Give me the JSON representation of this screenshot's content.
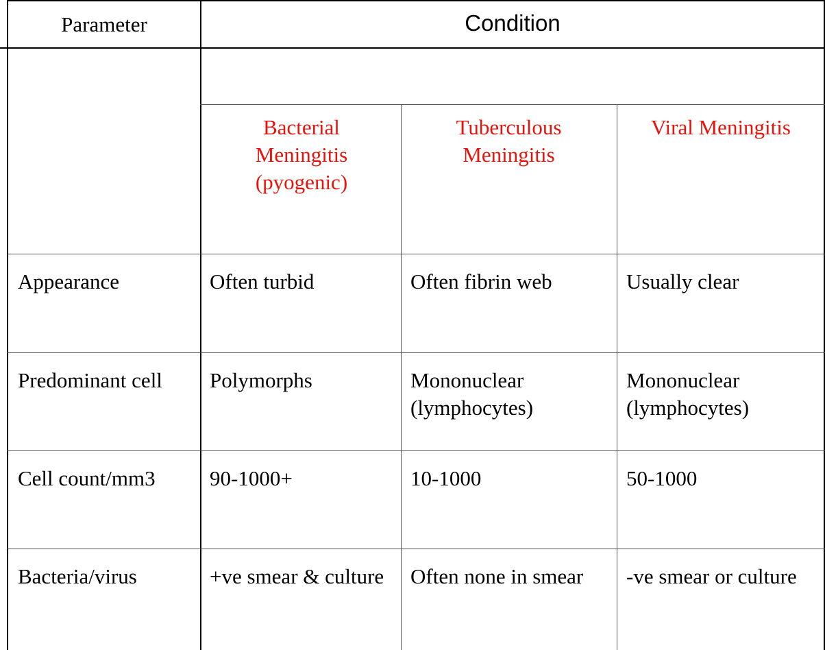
{
  "header": {
    "parameter": "Parameter",
    "condition": "Condition"
  },
  "conditions": [
    "Bacterial Meningitis (pyogenic)",
    "Tuberculous Meningitis",
    "Viral Meningitis"
  ],
  "rows": [
    [
      "Appearance",
      "Often turbid",
      "Often fibrin web",
      "Usually clear"
    ],
    [
      "Predominant cell",
      "Polymorphs",
      "Mononuclear (lymphocytes)",
      "Mononuclear (lymphocytes)"
    ],
    [
      "Cell count/mm3",
      "90-1000+",
      "10-1000",
      "50-1000"
    ],
    [
      "Bacteria/virus",
      "+ve smear & culture",
      "Often none in smear",
      "-ve smear or culture"
    ]
  ]
}
